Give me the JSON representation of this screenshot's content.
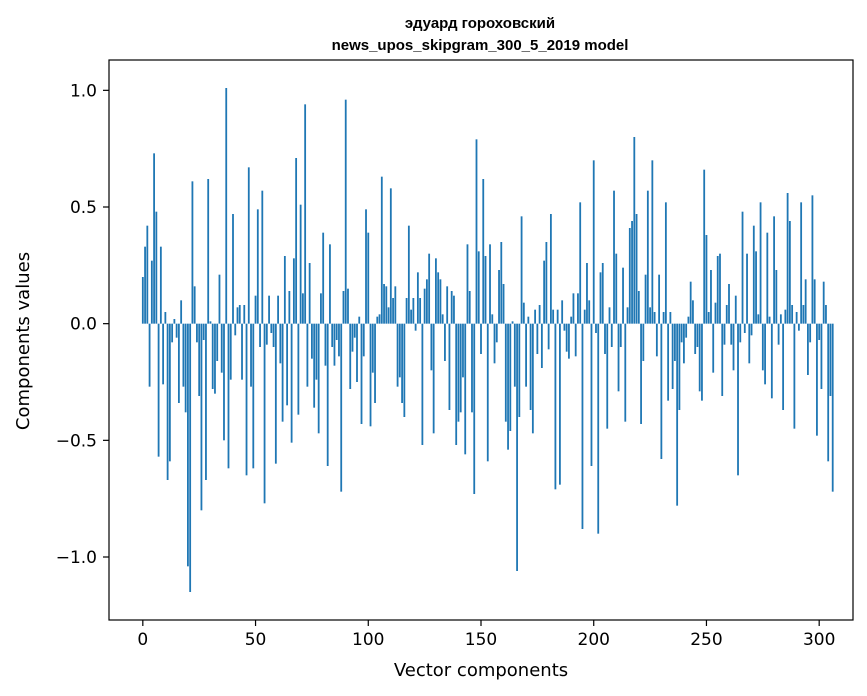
{
  "chart_data": {
    "type": "bar",
    "title_line1": "эдуард гороховский",
    "title_line2": "news_upos_skipgram_300_5_2019 model",
    "xlabel": "Vector components",
    "ylabel": "Components values",
    "xlim": [
      -15,
      315
    ],
    "ylim": [
      -1.27,
      1.13
    ],
    "xticks": [
      0,
      50,
      100,
      150,
      200,
      250,
      300
    ],
    "xtick_labels": [
      "0",
      "50",
      "100",
      "150",
      "200",
      "250",
      "300"
    ],
    "yticks": [
      -1.0,
      -0.5,
      0.0,
      0.5,
      1.0
    ],
    "ytick_labels": [
      "−1.0",
      "−0.5",
      "0.0",
      "0.5",
      "1.0"
    ],
    "bar_color": "#1f77b4",
    "values": [
      0.2,
      0.33,
      0.42,
      -0.27,
      0.27,
      0.73,
      0.48,
      -0.57,
      0.33,
      -0.26,
      0.05,
      -0.67,
      -0.59,
      -0.08,
      0.02,
      -0.06,
      -0.34,
      0.1,
      -0.27,
      -0.38,
      -1.04,
      -1.15,
      0.61,
      0.16,
      -0.08,
      -0.31,
      -0.8,
      -0.07,
      -0.67,
      0.62,
      0.01,
      -0.28,
      -0.3,
      -0.16,
      0.21,
      -0.21,
      -0.5,
      1.01,
      -0.62,
      -0.24,
      0.47,
      -0.05,
      0.07,
      0.08,
      -0.24,
      0.08,
      -0.65,
      0.67,
      -0.27,
      -0.62,
      0.12,
      0.49,
      -0.1,
      0.57,
      -0.77,
      -0.09,
      0.12,
      -0.04,
      -0.1,
      -0.6,
      0.12,
      -0.17,
      -0.42,
      0.29,
      -0.35,
      0.14,
      -0.51,
      0.28,
      0.71,
      -0.39,
      0.51,
      0.13,
      0.94,
      -0.27,
      0.26,
      -0.15,
      -0.36,
      -0.24,
      -0.47,
      0.13,
      0.39,
      -0.18,
      -0.61,
      0.34,
      -0.1,
      -0.18,
      -0.07,
      -0.14,
      -0.72,
      0.14,
      0.96,
      0.15,
      -0.28,
      -0.12,
      -0.06,
      -0.25,
      0.03,
      -0.43,
      -0.14,
      0.49,
      0.39,
      -0.44,
      -0.21,
      -0.34,
      0.03,
      0.04,
      0.63,
      0.17,
      0.16,
      0.07,
      0.58,
      0.11,
      0.16,
      -0.27,
      -0.23,
      -0.34,
      -0.4,
      0.11,
      0.42,
      0.06,
      0.11,
      -0.03,
      0.22,
      0.11,
      -0.52,
      0.15,
      0.19,
      0.3,
      -0.2,
      -0.47,
      0.28,
      0.22,
      0.19,
      0.04,
      -0.16,
      0.16,
      -0.37,
      0.14,
      0.12,
      -0.52,
      -0.42,
      -0.38,
      -0.23,
      -0.56,
      0.34,
      0.14,
      -0.38,
      -0.73,
      0.79,
      0.31,
      -0.13,
      0.62,
      0.29,
      -0.59,
      0.34,
      0.04,
      -0.17,
      -0.08,
      0.23,
      0.35,
      0.17,
      -0.42,
      -0.54,
      -0.46,
      0.01,
      -0.27,
      -1.06,
      -0.4,
      0.46,
      0.09,
      -0.27,
      0.03,
      -0.37,
      -0.47,
      0.06,
      -0.13,
      0.08,
      -0.19,
      0.27,
      0.35,
      -0.11,
      0.47,
      0.06,
      -0.71,
      0.06,
      -0.69,
      0.1,
      -0.03,
      -0.12,
      -0.15,
      0.03,
      0.13,
      -0.14,
      0.13,
      0.52,
      -0.88,
      0.06,
      0.26,
      0.1,
      -0.61,
      0.7,
      -0.04,
      -0.9,
      0.22,
      0.26,
      -0.13,
      -0.45,
      0.07,
      -0.1,
      0.57,
      0.3,
      -0.29,
      -0.1,
      0.24,
      -0.42,
      0.07,
      0.41,
      0.44,
      0.8,
      0.47,
      0.14,
      -0.43,
      -0.16,
      0.21,
      0.57,
      0.07,
      0.7,
      0.05,
      -0.14,
      0.21,
      -0.58,
      0.05,
      0.52,
      -0.33,
      0.05,
      -0.28,
      -0.16,
      -0.78,
      -0.37,
      -0.08,
      -0.17,
      -0.06,
      0.03,
      0.18,
      0.1,
      -0.13,
      -0.1,
      -0.29,
      -0.33,
      0.66,
      0.38,
      0.05,
      0.23,
      -0.21,
      0.09,
      0.29,
      0.3,
      -0.31,
      -0.09,
      0.08,
      0.17,
      -0.09,
      -0.2,
      0.12,
      -0.65,
      -0.08,
      0.48,
      -0.04,
      0.3,
      -0.17,
      -0.05,
      0.42,
      0.31,
      0.04,
      0.52,
      -0.2,
      -0.26,
      0.39,
      0.03,
      -0.32,
      0.46,
      0.23,
      -0.09,
      0.04,
      -0.37,
      0.06,
      0.56,
      0.44,
      0.08,
      -0.45,
      0.05,
      -0.03,
      0.52,
      0.08,
      0.19,
      -0.22,
      -0.08,
      0.55,
      0.19,
      -0.48,
      -0.07,
      -0.28,
      0.18,
      0.08,
      -0.59,
      -0.31,
      -0.72
    ]
  }
}
